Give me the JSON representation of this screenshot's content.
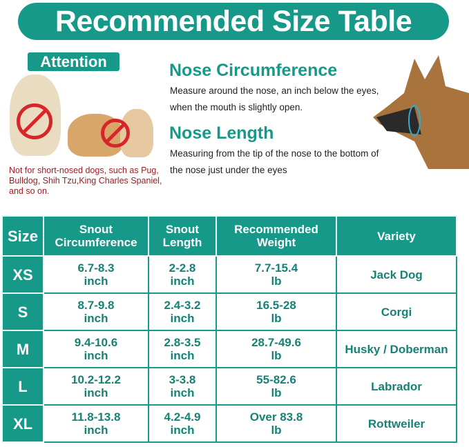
{
  "title": "Recommended Size Table",
  "attention": {
    "label": "Attention",
    "warning": "Not for short-nosed dogs, such as Pug, Bulldog, Shih Tzu,King Charles Spaniel, and so on."
  },
  "nose_circumference": {
    "heading": "Nose Circumference",
    "text": "Measure around the nose, an inch below the eyes, when the mouth is slightly open."
  },
  "nose_length": {
    "heading": "Nose Length",
    "text": "Measuring from the tip of the nose to the bottom of the nose just under the eyes"
  },
  "colors": {
    "teal": "#17998a",
    "warning_red": "#a01d22",
    "ban_red": "#d7262a"
  },
  "table": {
    "headers": [
      "Size",
      "Snout Circumference",
      "Snout Length",
      "Recommended Weight",
      "Variety"
    ],
    "rows": [
      [
        "XS",
        "6.7-8.3 inch",
        "2-2.8 inch",
        "7.7-15.4 lb",
        "Jack Dog"
      ],
      [
        "S",
        "8.7-9.8 inch",
        "2.4-3.2 inch",
        "16.5-28 lb",
        "Corgi"
      ],
      [
        "M",
        "9.4-10.6 inch",
        "2.8-3.5 inch",
        "28.7-49.6 lb",
        "Husky / Doberman"
      ],
      [
        "L",
        "10.2-12.2 inch",
        "3-3.8 inch",
        "55-82.6 lb",
        "Labrador"
      ],
      [
        "XL",
        "11.8-13.8 inch",
        "4.2-4.9 inch",
        "Over 83.8 lb",
        "Rottweiler"
      ]
    ]
  }
}
